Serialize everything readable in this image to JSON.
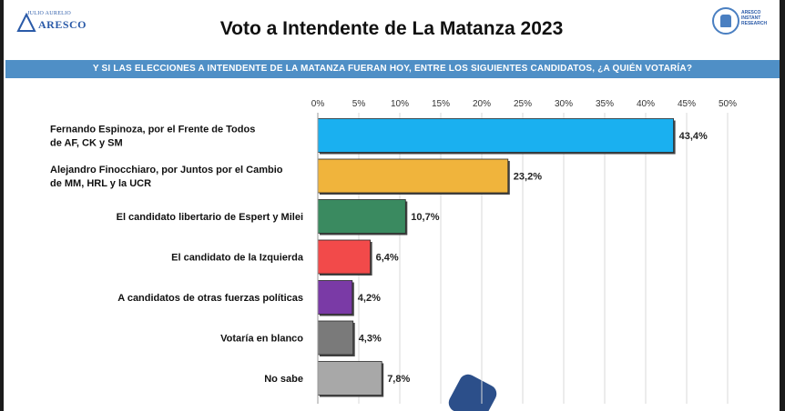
{
  "header": {
    "title": "Voto a Intendente de La Matanza 2023",
    "logo_left_small": "JULIO AURELIO",
    "logo_left_big": "ARESCO",
    "logo_right_lines": [
      "ARESCO",
      "INSTANT",
      "RESEARCH"
    ]
  },
  "banner": {
    "question": "Y SI LAS ELECCIONES A INTENDENTE DE LA MATANZA FUERAN HOY, ENTRE LOS SIGUIENTES CANDIDATOS, ¿A QUIÉN VOTARÍA?"
  },
  "chart_data": {
    "type": "bar",
    "orientation": "horizontal",
    "title": "Voto a Intendente de La Matanza 2023",
    "xlim": [
      0,
      50
    ],
    "ticks": [
      "0%",
      "5%",
      "10%",
      "15%",
      "20%",
      "25%",
      "30%",
      "35%",
      "40%",
      "45%",
      "50%"
    ],
    "tick_values": [
      0,
      5,
      10,
      15,
      20,
      25,
      30,
      35,
      40,
      45,
      50
    ],
    "grid": "vertical",
    "categories": [
      [
        "Fernando Espinoza, por el Frente de Todos",
        "de AF, CK y SM"
      ],
      [
        "Alejandro Finocchiaro, por Juntos por el Cambio",
        "de MM, HRL y la UCR"
      ],
      [
        "El candidato libertario de Espert y Milei"
      ],
      [
        "El candidato de la Izquierda"
      ],
      [
        "A candidatos de otras fuerzas políticas"
      ],
      [
        "Votaría en blanco"
      ],
      [
        "No sabe"
      ]
    ],
    "values": [
      43.4,
      23.2,
      10.7,
      6.4,
      4.2,
      4.3,
      7.8
    ],
    "labels": [
      "43,4%",
      "23,2%",
      "10,7%",
      "6,4%",
      "4,2%",
      "4,3%",
      "7,8%"
    ],
    "colors": [
      "#1ab0f0",
      "#f0b43c",
      "#3a8a60",
      "#f24a4a",
      "#7a3aa6",
      "#7a7a7a",
      "#a8a8a8"
    ]
  }
}
